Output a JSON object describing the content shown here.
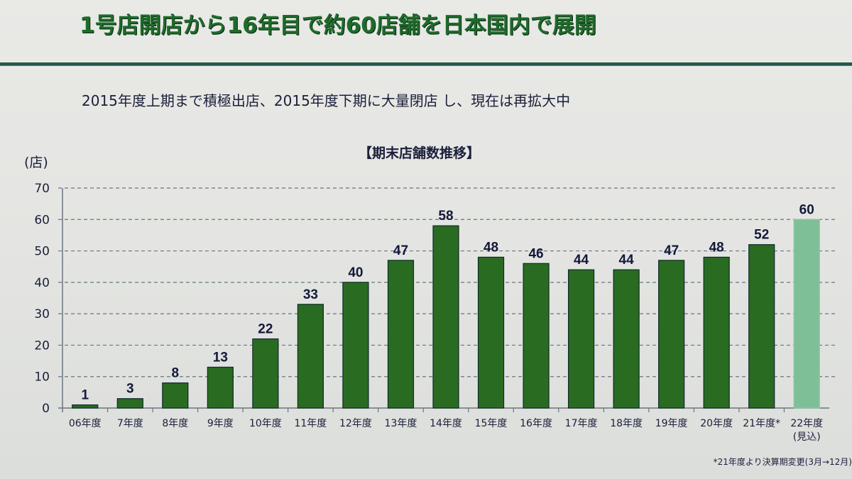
{
  "slide": {
    "title": "1号店開店から16年目で約60店舗を日本国内で展開",
    "subtitle": "2015年度上期まで積極出店、2015年度下期に大量閉店 し、現在は再拡大中",
    "chart_title": "【期末店舗数推移】",
    "unit_label": "(店)",
    "footnote": "*21年度より決算期変更(3月→12月)"
  },
  "colors": {
    "title_green": "#1e6b2a",
    "bar_actual": "#2a6b22",
    "bar_forecast": "#7fbf97",
    "bar_edge": "#0f2a2a",
    "gridline": "#6c7480",
    "text": "#1b1f3a"
  },
  "chart_data": {
    "type": "bar",
    "title": "【期末店舗数推移】",
    "xlabel": "",
    "ylabel": "(店)",
    "ylim": [
      0,
      70
    ],
    "yticks": [
      0,
      10,
      20,
      30,
      40,
      50,
      60,
      70
    ],
    "grid": "horizontal dashed",
    "legend": "none",
    "categories": [
      "06年度",
      "7年度",
      "8年度",
      "9年度",
      "10年度",
      "11年度",
      "12年度",
      "13年度",
      "14年度",
      "15年度",
      "16年度",
      "17年度",
      "18年度",
      "19年度",
      "20年度",
      "21年度*",
      "22年度"
    ],
    "category_sublabels": {
      "22年度": "(見込)"
    },
    "values": [
      1,
      3,
      8,
      13,
      22,
      33,
      40,
      47,
      58,
      48,
      46,
      44,
      44,
      47,
      48,
      52,
      60
    ],
    "forecast_index": [
      16
    ],
    "annotations": [
      "22年度 is forecast (見込), shown in lighter green",
      "*21年度より決算期変更(3月→12月)"
    ]
  }
}
